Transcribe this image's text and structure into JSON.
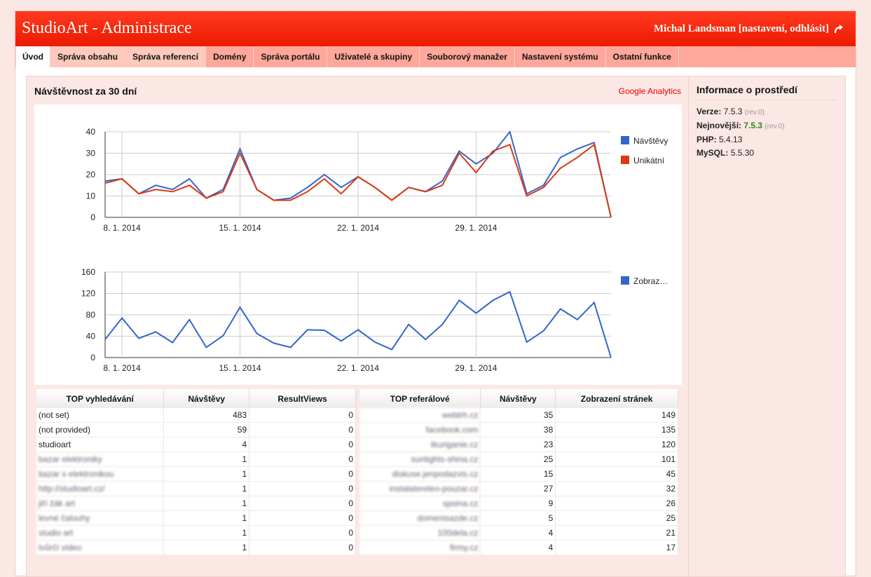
{
  "header": {
    "title": "StudioArt - Administrace",
    "user": "Michal Landsman [nastavení, odhlásit]"
  },
  "tabs": [
    {
      "label": "Úvod",
      "active": true
    },
    {
      "label": "Správa obsahu"
    },
    {
      "label": "Správa referencí"
    },
    {
      "label": "Domény"
    },
    {
      "label": "Správa portálu"
    },
    {
      "label": "Uživatelé a skupiny"
    },
    {
      "label": "Souborový manažer"
    },
    {
      "label": "Nastavení systému"
    },
    {
      "label": "Ostatní funkce"
    }
  ],
  "main": {
    "title": "Návštěvnost za 30 dní",
    "ga_link": "Google Analytics"
  },
  "chart_data": [
    {
      "type": "line",
      "x_ticks": [
        "8. 1. 2014",
        "15. 1. 2014",
        "22. 1. 2014",
        "29. 1. 2014"
      ],
      "ylim": [
        0,
        40
      ],
      "y_ticks": [
        0,
        10,
        20,
        30,
        40
      ],
      "legend": "right",
      "series": [
        {
          "name": "Návštěvy",
          "color": "#3366cc",
          "values": [
            17,
            18,
            11,
            15,
            13,
            18,
            9,
            13,
            32,
            13,
            8,
            9,
            14,
            20,
            14,
            19,
            14,
            8,
            14,
            12,
            17,
            31,
            25,
            30,
            40,
            11,
            15,
            28,
            32,
            35,
            0
          ]
        },
        {
          "name": "Unikátní",
          "color": "#dc3912",
          "values": [
            16,
            18,
            11,
            13,
            12,
            15,
            9,
            12,
            30,
            13,
            8,
            8,
            12,
            18,
            11,
            19,
            14,
            8,
            14,
            12,
            15,
            30,
            21,
            31,
            34,
            10,
            14,
            23,
            28,
            34,
            0
          ]
        }
      ]
    },
    {
      "type": "line",
      "x_ticks": [
        "8. 1. 2014",
        "15. 1. 2014",
        "22. 1. 2014",
        "29. 1. 2014"
      ],
      "ylim": [
        0,
        160
      ],
      "y_ticks": [
        0,
        40,
        80,
        120,
        160
      ],
      "legend": "right",
      "series": [
        {
          "name": "Zobraz…",
          "color": "#3366cc",
          "values": [
            34,
            74,
            36,
            48,
            28,
            71,
            19,
            41,
            94,
            45,
            27,
            19,
            52,
            51,
            31,
            52,
            29,
            15,
            62,
            34,
            62,
            107,
            83,
            107,
            123,
            29,
            50,
            91,
            71,
            103,
            0
          ]
        }
      ]
    }
  ],
  "search_table": {
    "headers": [
      "TOP vyhledávání",
      "Návštěvy",
      "ResultViews"
    ],
    "rows": [
      [
        "(not set)",
        "483",
        "0"
      ],
      [
        "(not provided)",
        "59",
        "0"
      ],
      [
        "studioart",
        "4",
        "0"
      ],
      [
        "bazar elektroniky",
        "1",
        "0"
      ],
      [
        "bazar s elektronikou",
        "1",
        "0"
      ],
      [
        "http://studioart.cz/",
        "1",
        "0"
      ],
      [
        "jiří žák art",
        "1",
        "0"
      ],
      [
        "levné čalouhy",
        "1",
        "0"
      ],
      [
        "studio art",
        "1",
        "0"
      ],
      [
        "tvůrčí video",
        "1",
        "0"
      ]
    ]
  },
  "ref_table": {
    "headers": [
      "TOP referálové",
      "Návštěvy",
      "Zobrazení stránek"
    ],
    "rows": [
      [
        "webtrh.cz",
        "35",
        "149"
      ],
      [
        "facebook.com",
        "38",
        "135"
      ],
      [
        "tkuriganie.cz",
        "23",
        "120"
      ],
      [
        "suntights-shina.cz",
        "25",
        "101"
      ],
      [
        "diskuse.jenpodazvis.cz",
        "15",
        "45"
      ],
      [
        "instalatereleo-pouzar.cz",
        "27",
        "32"
      ],
      [
        "spoina.cz",
        "9",
        "26"
      ],
      [
        "domenisazde.cz",
        "5",
        "25"
      ],
      [
        "100dela.cz",
        "4",
        "21"
      ],
      [
        "firmy.cz",
        "4",
        "17"
      ]
    ]
  },
  "side": {
    "title": "Informace o prostředí",
    "version_label": "Verze:",
    "version": "7.5.3",
    "version_rev": "(rev.0)",
    "latest_label": "Nejnovější:",
    "latest": "7.5.3",
    "latest_rev": "(rev.0)",
    "php_label": "PHP:",
    "php": "5.4.13",
    "mysql_label": "MySQL:",
    "mysql": "5.5.30"
  }
}
